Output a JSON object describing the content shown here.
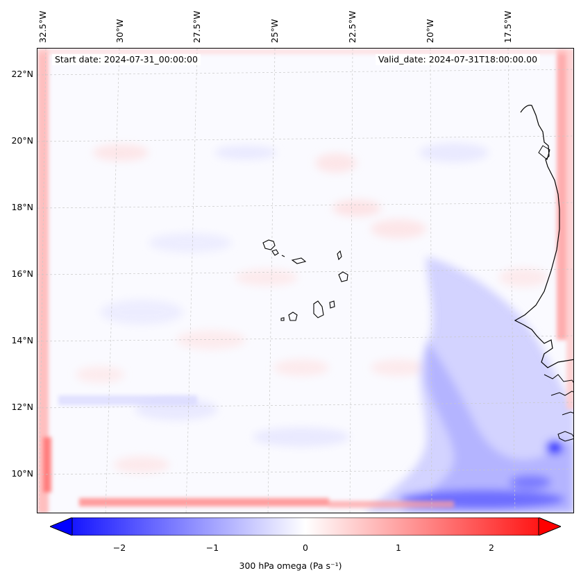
{
  "map": {
    "start_label": "Start date: 2024-07-31_00:00:00",
    "valid_label": "Valid_date: 2024-07-31T18:00:00.00",
    "lat_labels": [
      "22°N",
      "20°N",
      "18°N",
      "16°N",
      "14°N",
      "12°N",
      "10°N"
    ],
    "lon_labels": [
      "32.5°W",
      "30°W",
      "27.5°W",
      "25°W",
      "22.5°W",
      "20°W",
      "17.5°W"
    ],
    "field": "300 hPa omega",
    "extent": {
      "lon_min": -33.0,
      "lon_max": -15.8,
      "lat_min": 8.9,
      "lat_max": 22.7
    }
  },
  "colorbar": {
    "label": "300 hPa omega (Pa s⁻¹)",
    "ticks": [
      "−2",
      "−1",
      "0",
      "1",
      "2"
    ],
    "tick_values": [
      -2,
      -1,
      0,
      1,
      2
    ],
    "vmin": -2.5,
    "vmax": 2.5,
    "colors": {
      "negative": "#0000ff",
      "zero": "#ffffff",
      "positive": "#ff0000"
    }
  }
}
